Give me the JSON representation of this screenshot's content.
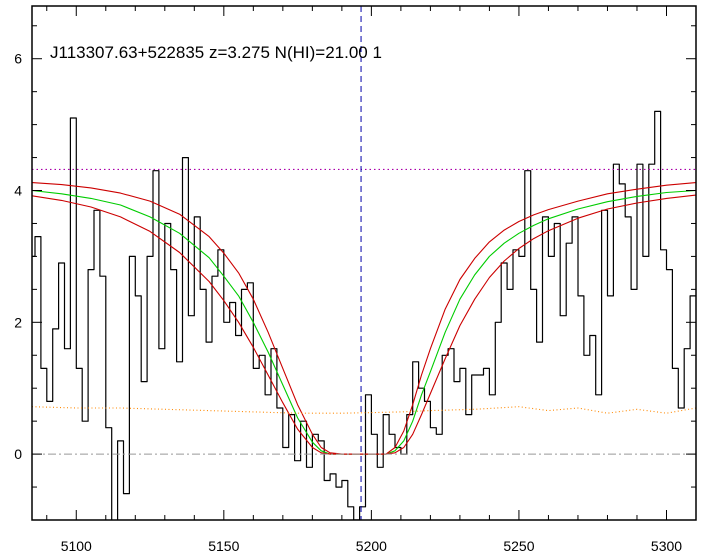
{
  "chart_data": {
    "type": "line",
    "title": "J113307.63+522835 z=3.275 N(HI)=21.00 1",
    "xlabel": "",
    "ylabel": "",
    "xlim": [
      5085,
      5310
    ],
    "ylim": [
      -1.0,
      6.8
    ],
    "x_ticks": [
      5100,
      5150,
      5200,
      5250,
      5300
    ],
    "y_ticks": [
      0,
      2,
      4,
      6
    ],
    "grid": false,
    "legend": "none",
    "colors": {
      "flux": "#000000",
      "model": "#00cc00",
      "model_bounds": "#cc0000",
      "continuum": "#aa00aa",
      "error": "#ff8800",
      "zero_line": "#999999",
      "center_line": "#0000aa"
    },
    "center_wavelength": 5196.5,
    "continuum_level": 4.32,
    "zero_level": 0,
    "series": [
      {
        "role": "flux",
        "style": "steps",
        "x": [
          5085,
          5087,
          5089,
          5091,
          5093,
          5095,
          5097,
          5099,
          5101,
          5103,
          5105,
          5107,
          5109,
          5111,
          5113,
          5115,
          5117,
          5119,
          5121,
          5123,
          5125,
          5127,
          5129,
          5131,
          5133,
          5135,
          5137,
          5139,
          5141,
          5143,
          5145,
          5147,
          5149,
          5151,
          5153,
          5155,
          5157,
          5159,
          5161,
          5163,
          5165,
          5167,
          5169,
          5171,
          5173,
          5175,
          5177,
          5179,
          5181,
          5183,
          5185,
          5187,
          5189,
          5191,
          5193,
          5195,
          5197,
          5199,
          5201,
          5203,
          5205,
          5207,
          5209,
          5211,
          5213,
          5215,
          5217,
          5219,
          5221,
          5223,
          5225,
          5227,
          5229,
          5231,
          5233,
          5235,
          5237,
          5239,
          5241,
          5243,
          5245,
          5247,
          5249,
          5251,
          5253,
          5255,
          5257,
          5259,
          5261,
          5263,
          5265,
          5267,
          5269,
          5271,
          5273,
          5275,
          5277,
          5279,
          5281,
          5283,
          5285,
          5287,
          5289,
          5291,
          5293,
          5295,
          5297,
          5299,
          5301,
          5303,
          5305,
          5307,
          5309
        ],
        "y": [
          3.0,
          3.3,
          1.3,
          0.8,
          1.9,
          2.9,
          1.6,
          5.1,
          1.3,
          0.5,
          2.8,
          3.7,
          2.7,
          0.4,
          -1.4,
          0.2,
          -0.6,
          3.0,
          2.4,
          1.1,
          3.0,
          4.3,
          1.6,
          3.5,
          2.8,
          1.4,
          4.5,
          2.1,
          3.6,
          2.5,
          1.7,
          2.7,
          3.1,
          2.0,
          2.3,
          1.8,
          2.5,
          2.6,
          1.3,
          1.5,
          0.9,
          1.6,
          0.7,
          0.1,
          0.6,
          -0.1,
          0.5,
          -0.2,
          0.3,
          0.2,
          -0.4,
          -0.3,
          -0.5,
          -0.4,
          -0.8,
          -1.0,
          -0.8,
          0.9,
          0.3,
          -0.2,
          0.6,
          0.3,
          0.1,
          0.0,
          0.6,
          1.4,
          1.0,
          0.8,
          0.4,
          0.3,
          1.5,
          1.6,
          1.1,
          1.3,
          0.6,
          1.2,
          1.2,
          1.3,
          0.9,
          2.0,
          2.9,
          2.5,
          3.1,
          3.0,
          4.3,
          2.5,
          1.7,
          3.6,
          3.0,
          3.5,
          2.1,
          3.2,
          3.6,
          2.4,
          1.5,
          1.8,
          0.9,
          3.7,
          2.4,
          4.4,
          4.1,
          3.6,
          2.5,
          4.4,
          3.0,
          4.4,
          5.2,
          3.1,
          2.8,
          1.3,
          0.7,
          1.6,
          2.4
        ]
      },
      {
        "role": "model",
        "style": "smooth",
        "x": [
          5085,
          5095,
          5105,
          5115,
          5125,
          5135,
          5145,
          5150,
          5155,
          5160,
          5165,
          5170,
          5175,
          5180,
          5183,
          5186,
          5190,
          5195,
          5200,
          5205,
          5208,
          5211,
          5214,
          5217,
          5220,
          5225,
          5230,
          5235,
          5240,
          5245,
          5250,
          5255,
          5260,
          5270,
          5280,
          5290,
          5300,
          5310
        ],
        "y": [
          4.0,
          3.95,
          3.88,
          3.78,
          3.6,
          3.35,
          2.98,
          2.7,
          2.4,
          2.0,
          1.55,
          1.05,
          0.55,
          0.18,
          0.05,
          0.0,
          0.0,
          0.0,
          0.0,
          0.0,
          0.05,
          0.2,
          0.5,
          0.9,
          1.25,
          1.85,
          2.35,
          2.72,
          3.0,
          3.2,
          3.35,
          3.47,
          3.57,
          3.72,
          3.83,
          3.91,
          3.97,
          4.0
        ]
      },
      {
        "role": "model_upper",
        "style": "smooth",
        "x": [
          5085,
          5095,
          5105,
          5115,
          5125,
          5135,
          5145,
          5150,
          5155,
          5160,
          5165,
          5170,
          5175,
          5180,
          5183,
          5186,
          5190,
          5195,
          5200,
          5205,
          5208,
          5211,
          5214,
          5217,
          5220,
          5225,
          5230,
          5235,
          5240,
          5245,
          5250,
          5255,
          5260,
          5270,
          5280,
          5290,
          5300,
          5310
        ],
        "y": [
          4.12,
          4.09,
          4.04,
          3.96,
          3.84,
          3.64,
          3.3,
          3.05,
          2.75,
          2.35,
          1.85,
          1.3,
          0.75,
          0.3,
          0.1,
          0.02,
          0.0,
          0.0,
          0.0,
          0.0,
          0.1,
          0.35,
          0.75,
          1.2,
          1.6,
          2.2,
          2.65,
          2.97,
          3.22,
          3.4,
          3.53,
          3.63,
          3.71,
          3.84,
          3.95,
          4.02,
          4.08,
          4.12
        ]
      },
      {
        "role": "model_lower",
        "style": "smooth",
        "x": [
          5085,
          5095,
          5105,
          5115,
          5125,
          5135,
          5145,
          5150,
          5155,
          5160,
          5165,
          5170,
          5175,
          5180,
          5183,
          5186,
          5190,
          5195,
          5200,
          5205,
          5208,
          5211,
          5214,
          5217,
          5220,
          5225,
          5230,
          5235,
          5240,
          5245,
          5250,
          5255,
          5260,
          5270,
          5280,
          5290,
          5300,
          5310
        ],
        "y": [
          3.92,
          3.85,
          3.75,
          3.6,
          3.38,
          3.06,
          2.62,
          2.33,
          2.0,
          1.62,
          1.2,
          0.78,
          0.38,
          0.1,
          0.02,
          0.0,
          0.0,
          0.0,
          0.0,
          0.0,
          0.02,
          0.1,
          0.3,
          0.6,
          0.92,
          1.45,
          1.95,
          2.35,
          2.68,
          2.93,
          3.12,
          3.27,
          3.39,
          3.58,
          3.72,
          3.81,
          3.88,
          3.93
        ]
      },
      {
        "role": "error",
        "style": "dotted",
        "x": [
          5085,
          5100,
          5115,
          5130,
          5145,
          5160,
          5175,
          5190,
          5200,
          5210,
          5220,
          5235,
          5250,
          5260,
          5270,
          5280,
          5290,
          5300,
          5310
        ],
        "y": [
          0.72,
          0.7,
          0.7,
          0.68,
          0.66,
          0.64,
          0.62,
          0.62,
          0.63,
          0.64,
          0.66,
          0.68,
          0.72,
          0.66,
          0.7,
          0.62,
          0.68,
          0.62,
          0.7
        ]
      }
    ]
  }
}
